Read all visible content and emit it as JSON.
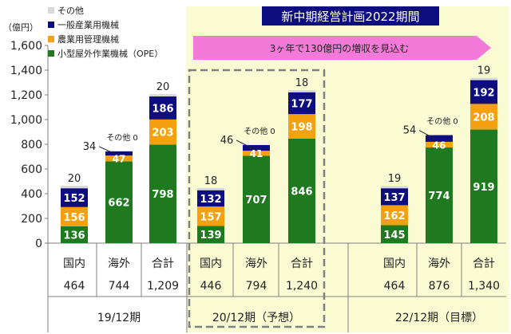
{
  "banner": "新中期経営計画2022期間",
  "arrow_text": "3ヶ年で130億円の増収を見込む",
  "chart_data": {
    "type": "bar",
    "stacked": true,
    "ylabel": "（億円）",
    "ylim": [
      0,
      1600
    ],
    "yticks": [
      0,
      200,
      400,
      600,
      800,
      1000,
      1200,
      1400,
      1600
    ],
    "legend_position": "top-left",
    "series": [
      {
        "name": "小型屋外作業機械（OPE）",
        "color": "#1f7a1f",
        "values": [
          136,
          662,
          798,
          139,
          707,
          846,
          145,
          774,
          919
        ]
      },
      {
        "name": "農業用管理機械",
        "color": "#f5a00f",
        "values": [
          156,
          47,
          203,
          157,
          41,
          198,
          162,
          46,
          208
        ]
      },
      {
        "name": "一般産業用機械",
        "color": "#0d0d80",
        "values": [
          152,
          34,
          186,
          132,
          46,
          177,
          137,
          54,
          192
        ]
      },
      {
        "name": "その他",
        "color": "#d9d9d9",
        "values": [
          20,
          0,
          20,
          18,
          0,
          18,
          19,
          0,
          19
        ]
      }
    ],
    "categories": [
      "国内",
      "海外",
      "合計",
      "国内",
      "海外",
      "合計",
      "国内",
      "海外",
      "合計"
    ],
    "totals": [
      "464",
      "744",
      "1,209",
      "446",
      "794",
      "1,240",
      "464",
      "876",
      "1,340"
    ],
    "top_labels": [
      "20",
      "",
      "20",
      "18",
      "",
      "18",
      "19",
      "",
      "19"
    ],
    "other_zero_label": "その他 0",
    "groups": [
      "19/12期",
      "20/12期（予想）",
      "22/12期（目標）"
    ]
  }
}
